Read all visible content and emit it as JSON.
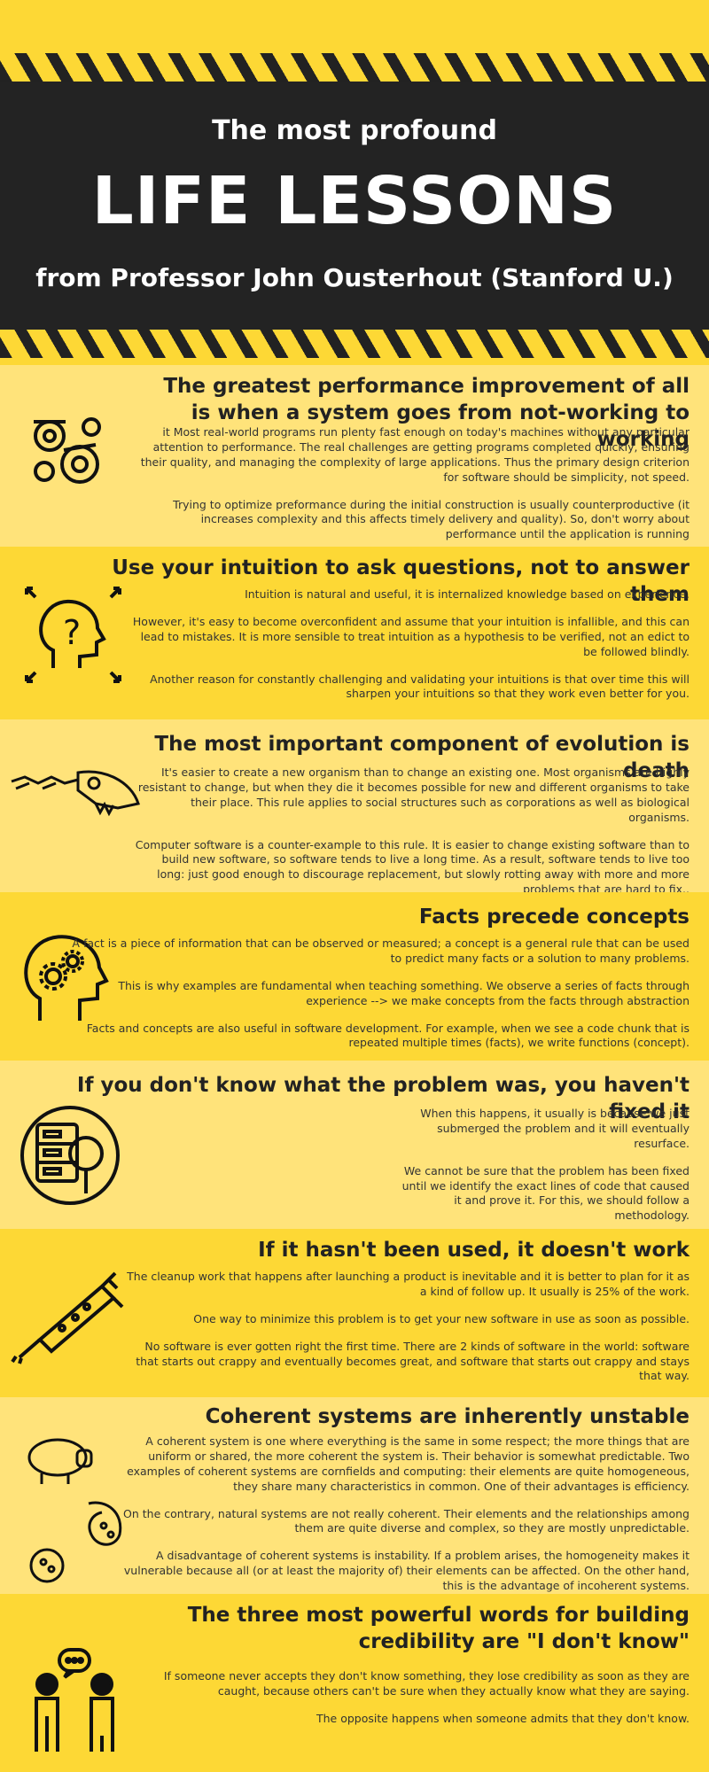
{
  "header": {
    "line1": "The most profound",
    "line2": "LIFE LESSONS",
    "line3": "from Professor John Ousterhout (Stanford U.)"
  },
  "sections": [
    {
      "title": "The greatest performance improvement of all is when a system goes from not-working to working",
      "paragraphs": [
        "it Most real-world programs run plenty fast enough on today's machines without any particular attention to performance. The real challenges are getting programs completed quickly, ensuring their quality, and managing the complexity of large applications. Thus the primary design criterion for software should be simplicity, not speed.",
        "Trying to optimize preformance during the initial construction is usually counterproductive (it increases complexity and this affects timely delivery and quality). So, don't worry about performance until the application is running"
      ],
      "icon": "gears-icon"
    },
    {
      "title": "Use your intuition to ask questions, not to answer them",
      "paragraphs": [
        "Intuition is natural and useful, it is internalized knowledge based on experience.",
        "However, it's easy to become overconfident and assume that your intuition is infallible, and this can lead to mistakes. It is more sensible to treat intuition as a hypothesis to be verified, not an edict to be followed blindly.",
        "Another reason for constantly challenging and validating your intuitions is that over time this will sharpen your intuitions so that they work even better for you."
      ],
      "icon": "head-question-icon"
    },
    {
      "title": "The most important component of evolution is death",
      "paragraphs": [
        "It's easier to create a new organism than to change an existing one. Most organisms are highly resistant to change, but when they die it becomes possible for new and different organisms to take their place. This rule applies to social structures such as corporations as well as biological organisms.",
        "Computer software is a counter-example to this rule. It is easier to change existing software than to build new software, so software tends to live a long time. As a result, software tends to live too long: just good enough to discourage replacement, but slowly rotting away with more and more problems that are hard to fix.."
      ],
      "icon": "fossil-icon"
    },
    {
      "title": "Facts precede concepts",
      "paragraphs": [
        "A fact is a piece of information that can be observed or measured; a concept is a general rule that can be used to predict many facts or a solution to many problems.",
        "This is why examples are fundamental when teaching something. We observe a series of facts through experience --> we make concepts from the facts through abstraction",
        "Facts and concepts are also useful in software development. For example, when we see a code chunk that is repeated multiple times (facts), we write functions (concept)."
      ],
      "icon": "head-gears-icon"
    },
    {
      "title": "If you don't know what the problem was, you haven't fixed it",
      "paragraphs": [
        "When this happens, it usually is because we just submerged the problem and it will eventually resurface.",
        "We cannot be sure that the problem has been fixed until we identify the exact lines of code that caused it and prove it. For this, we should follow a methodology."
      ],
      "icon": "server-magnifier-icon"
    },
    {
      "title": "If it hasn't been used, it doesn't work",
      "paragraphs": [
        "The cleanup work that happens after launching a product is inevitable and it is better to plan for it as a kind of follow up.  It usually is 25% of the work.",
        "One way to minimize this problem is to get your new software in use as soon as possible.",
        "No software is ever gotten right the first time. There are 2 kinds of software in the world: software that starts out crappy and eventually becomes great, and software that starts out crappy and stays that way."
      ],
      "icon": "syringe-icon"
    },
    {
      "title": "Coherent systems are inherently unstable",
      "paragraphs": [
        "A coherent system is one where everything is the same in some respect; the more things that are uniform or shared, the more coherent the system is. Their behavior is somewhat predictable. Two examples of coherent systems are cornfields and computing: their elements are quite homogeneous, they share many characteristics in common. One of their advantages is efficiency.",
        "On the contrary, natural systems are not really coherent. Their elements and the relationships among them are quite diverse and complex, so they are mostly unpredictable.",
        "A disadvantage of coherent systems is instability. If a problem arises, the homogeneity makes it vulnerable because all (or at least the majority of) their elements can be affected. On the other hand, this is the advantage of incoherent systems."
      ],
      "icon": "sheep-germs-icon"
    },
    {
      "title": "The three most powerful words for building credibility are \"I don't know\"",
      "paragraphs": [
        "If someone never accepts they don't know something, they lose credibility as soon as they are caught, because others can't be sure when they actually know what they are saying.",
        "The opposite happens when someone admits that they don't know."
      ],
      "icon": "conversation-people-icon"
    }
  ]
}
